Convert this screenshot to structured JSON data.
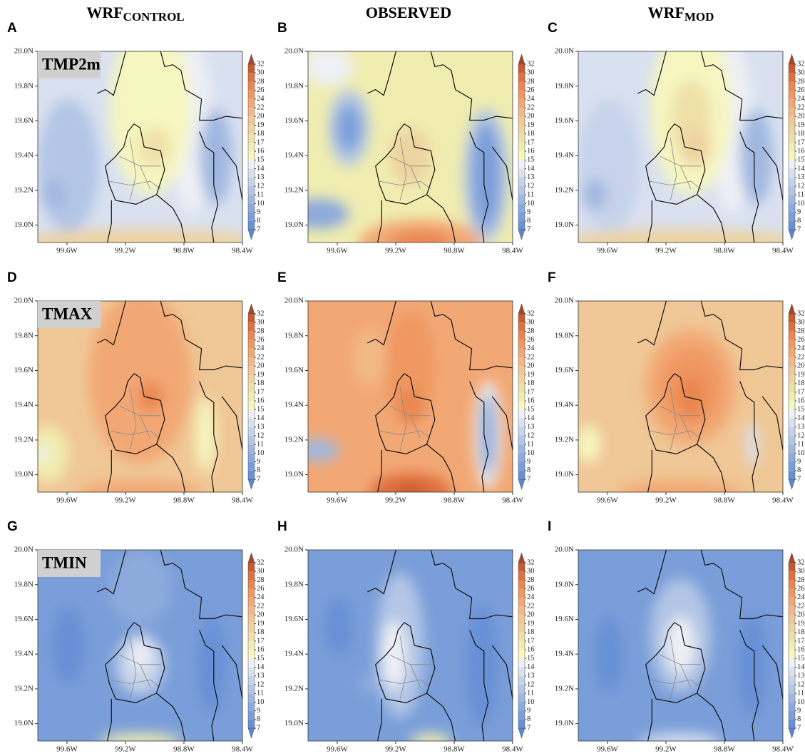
{
  "columns": [
    {
      "title": "WRF",
      "subscript": "CONTROL"
    },
    {
      "title": "OBSERVED"
    },
    {
      "title": "WRF",
      "subscript": "MOD"
    }
  ],
  "rows": [
    "TMP2m",
    "TMAX",
    "TMIN"
  ],
  "panel_labels": [
    "A",
    "B",
    "C",
    "D",
    "E",
    "F",
    "G",
    "H",
    "I"
  ],
  "chart_data": {
    "type": "map",
    "xlim": [
      -99.8,
      -98.4
    ],
    "ylim": [
      18.9,
      20.0
    ],
    "xticks": [
      {
        "value": -99.6,
        "label": "99.6W"
      },
      {
        "value": -99.2,
        "label": "99.2W"
      },
      {
        "value": -98.8,
        "label": "98.8W"
      },
      {
        "value": -98.4,
        "label": "98.4W"
      }
    ],
    "yticks": [
      {
        "value": 20.0,
        "label": "20.0N"
      },
      {
        "value": 19.8,
        "label": "19.8N"
      },
      {
        "value": 19.6,
        "label": "19.6N"
      },
      {
        "value": 19.4,
        "label": "19.4N"
      },
      {
        "value": 19.2,
        "label": "19.2N"
      },
      {
        "value": 19.0,
        "label": "19.0N"
      }
    ],
    "colorbar": {
      "levels": [
        7,
        8,
        9,
        10,
        11,
        12,
        13,
        14,
        15,
        16,
        17,
        18,
        19,
        20,
        22,
        24,
        26,
        28,
        30,
        32
      ],
      "colors": [
        "#5b86d4",
        "#6790d6",
        "#7a9ed9",
        "#8daadc",
        "#a0b8e0",
        "#b3c6e6",
        "#c6d3ea",
        "#d9e1f0",
        "#eef0f5",
        "#f6f6c0",
        "#f0edb0",
        "#efe0a8",
        "#eed3a0",
        "#f0c796",
        "#f2b987",
        "#f2a875",
        "#f09862",
        "#ea8650",
        "#e07040",
        "#c85a30",
        "#a8442a"
      ]
    }
  }
}
